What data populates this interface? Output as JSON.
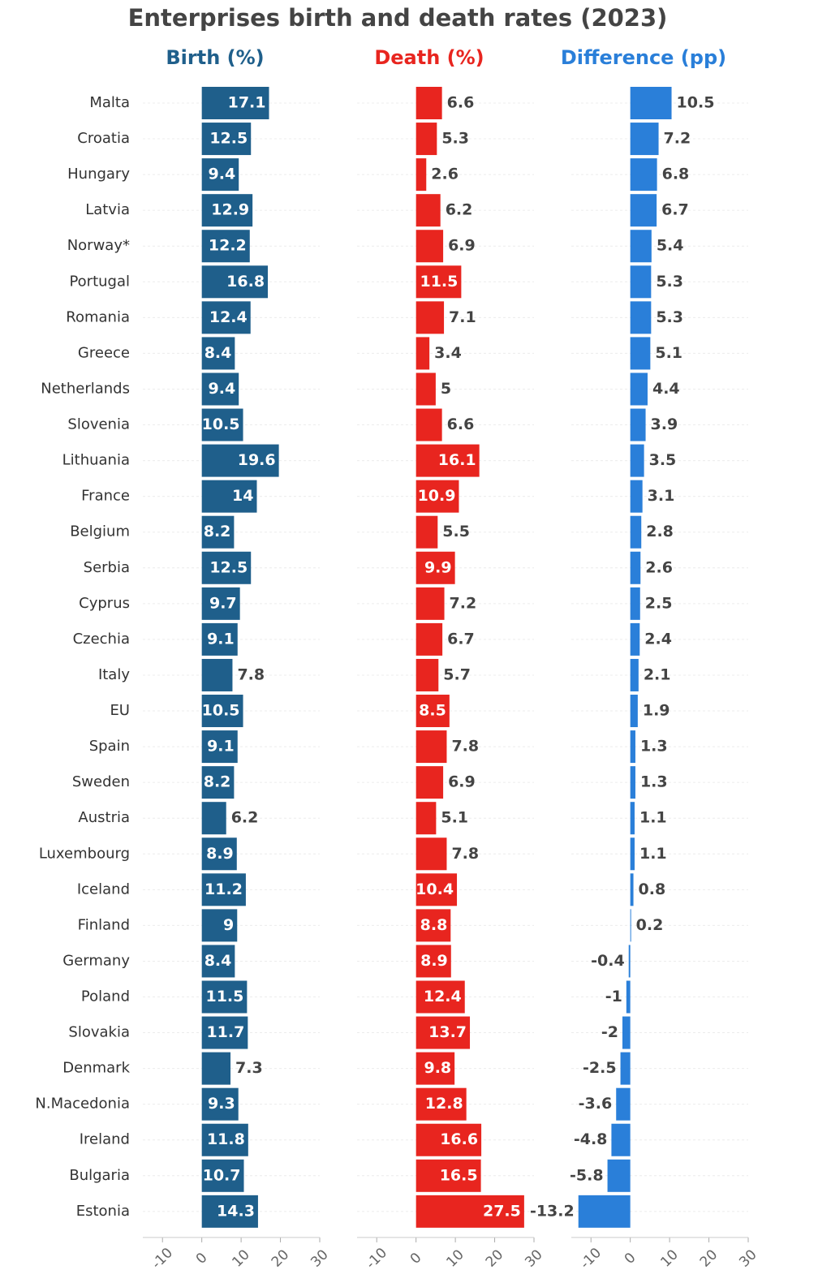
{
  "chart_data": {
    "type": "bar",
    "orientation": "horizontal",
    "title": "Enterprises birth and death rates (2023)",
    "categories": [
      "Malta",
      "Croatia",
      "Hungary",
      "Latvia",
      "Norway*",
      "Portugal",
      "Romania",
      "Greece",
      "Netherlands",
      "Slovenia",
      "Lithuania",
      "France",
      "Belgium",
      "Serbia",
      "Cyprus",
      "Czechia",
      "Italy",
      "EU",
      "Spain",
      "Sweden",
      "Austria",
      "Luxembourg",
      "Iceland",
      "Finland",
      "Germany",
      "Poland",
      "Slovakia",
      "Denmark",
      "N.Macedonia",
      "Ireland",
      "Bulgaria",
      "Estonia"
    ],
    "series": [
      {
        "name": "Birth (%)",
        "color": "#1f5f8b",
        "values": [
          17.1,
          12.5,
          9.4,
          12.9,
          12.2,
          16.8,
          12.4,
          8.4,
          9.4,
          10.5,
          19.6,
          14,
          8.2,
          12.5,
          9.7,
          9.1,
          7.8,
          10.5,
          9.1,
          8.2,
          6.2,
          8.9,
          11.2,
          9,
          8.4,
          11.5,
          11.7,
          7.3,
          9.3,
          11.8,
          10.7,
          14.3
        ]
      },
      {
        "name": "Death (%)",
        "color": "#e8251f",
        "values": [
          6.6,
          5.3,
          2.6,
          6.2,
          6.9,
          11.5,
          7.1,
          3.4,
          5,
          6.6,
          16.1,
          10.9,
          5.5,
          9.9,
          7.2,
          6.7,
          5.7,
          8.5,
          7.8,
          6.9,
          5.1,
          7.8,
          10.4,
          8.8,
          8.9,
          12.4,
          13.7,
          9.8,
          12.8,
          16.6,
          16.5,
          27.5
        ]
      },
      {
        "name": "Difference (pp)",
        "color": "#2a7fd9",
        "values": [
          10.5,
          7.2,
          6.8,
          6.7,
          5.4,
          5.3,
          5.3,
          5.1,
          4.4,
          3.9,
          3.5,
          3.1,
          2.8,
          2.6,
          2.5,
          2.4,
          2.1,
          1.9,
          1.3,
          1.3,
          1.1,
          1.1,
          0.8,
          0.2,
          -0.4,
          -1,
          -2,
          -2.5,
          -3.6,
          -4.8,
          -5.8,
          -13.2
        ]
      }
    ],
    "xlim": [
      -15,
      30
    ],
    "xticks": [
      -10,
      0,
      10,
      20,
      30
    ]
  }
}
